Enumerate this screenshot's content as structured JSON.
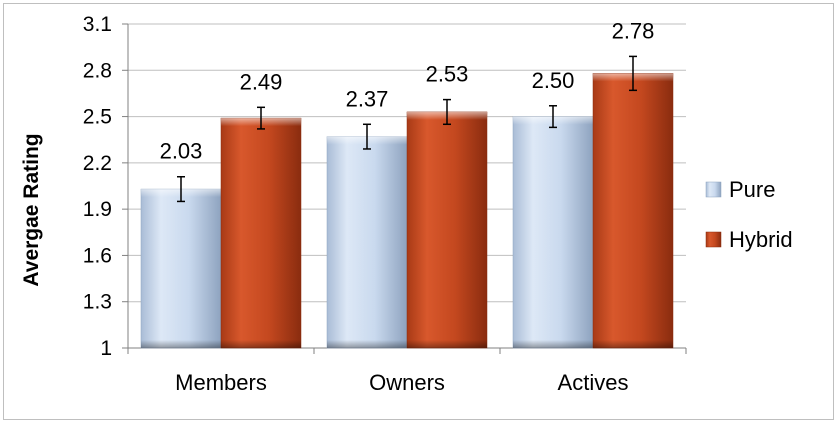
{
  "chart_data": {
    "type": "bar",
    "title": "",
    "xlabel": "",
    "ylabel": "Avergae Rating",
    "categories": [
      "Members",
      "Owners",
      "Actives"
    ],
    "ylim": [
      1,
      3.1
    ],
    "yticks": [
      1,
      1.3,
      1.6,
      1.9,
      2.2,
      2.5,
      2.8,
      3.1
    ],
    "ytick_labels": [
      "1",
      "1.3",
      "1.6",
      "1.9",
      "2.2",
      "2.5",
      "2.8",
      "3.1"
    ],
    "grid": true,
    "legend_position": "right",
    "series": [
      {
        "name": "Pure",
        "color": "#c6d9f1",
        "values": [
          2.03,
          2.37,
          2.5
        ],
        "value_labels": [
          "2.03",
          "2.37",
          "2.50"
        ],
        "error": [
          0.08,
          0.08,
          0.07
        ]
      },
      {
        "name": "Hybrid",
        "color": "#c0461f",
        "values": [
          2.49,
          2.53,
          2.78
        ],
        "value_labels": [
          "2.49",
          "2.53",
          "2.78"
        ],
        "error": [
          0.07,
          0.08,
          0.11
        ]
      }
    ]
  }
}
